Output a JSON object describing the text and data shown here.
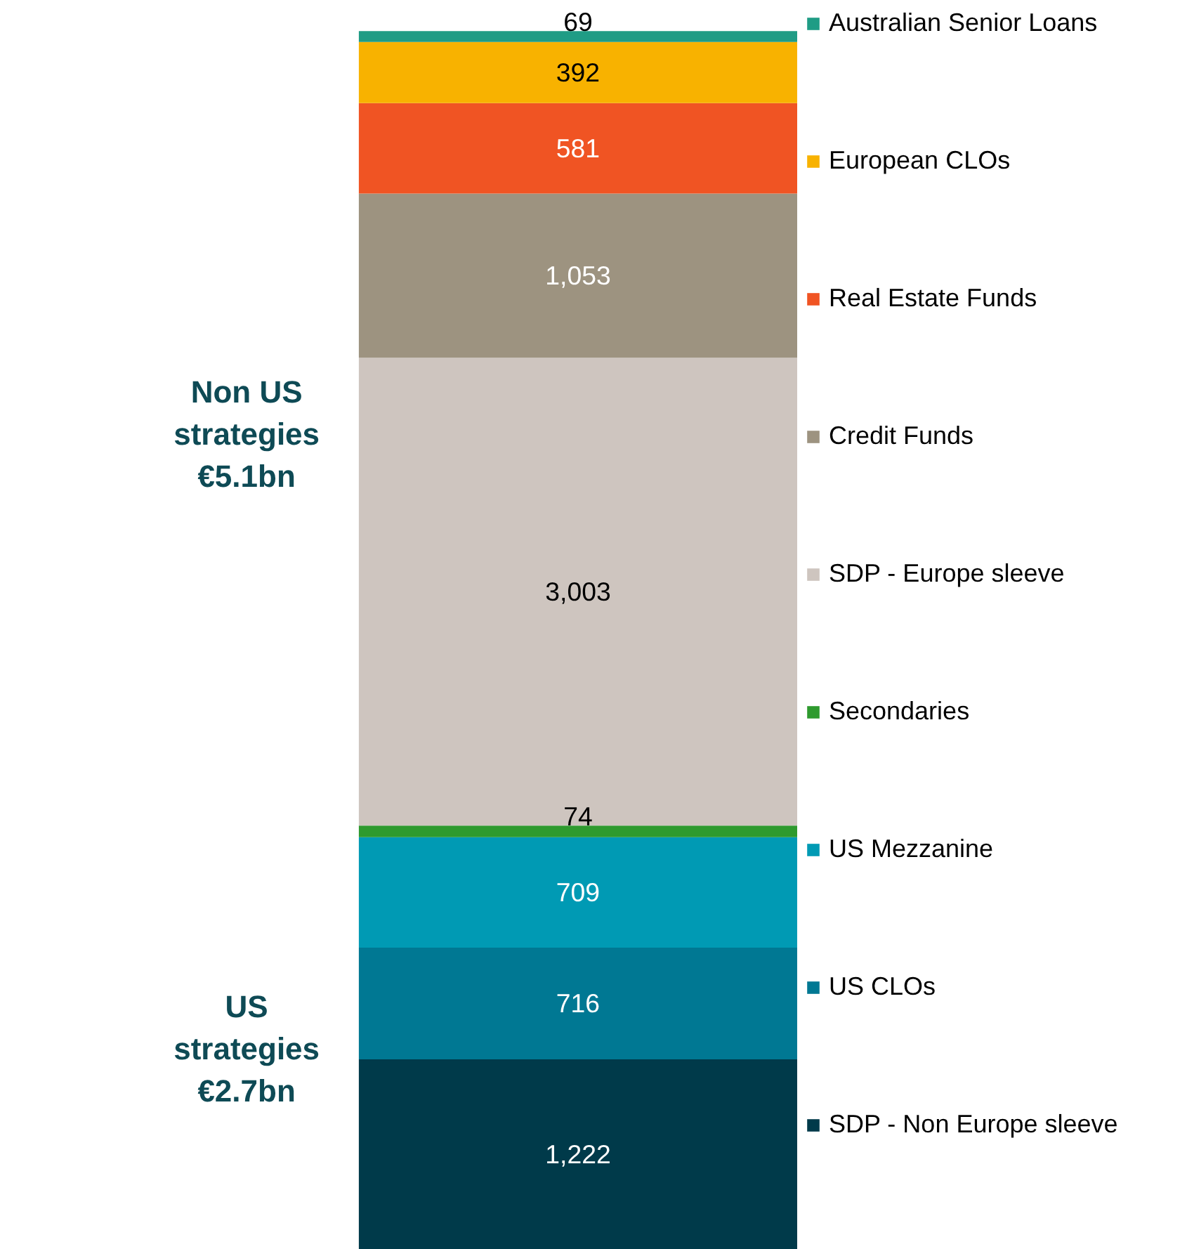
{
  "chart_data": {
    "type": "bar",
    "stacked": true,
    "categories": [
      null
    ],
    "legend": "right",
    "data_labels": true,
    "annotations": [
      "Non US\nstrategies\n€5.1bn",
      "US\nstrategies\n€2.7bn"
    ],
    "series": [
      {
        "name": "SDP - Non Europe sleeve",
        "color": "#003a4a",
        "values": [
          1222
        ],
        "value_labels": [
          "1,222"
        ]
      },
      {
        "name": "US CLOs",
        "color": "#007893",
        "values": [
          716
        ],
        "value_labels": [
          "716"
        ]
      },
      {
        "name": "US Mezzanine",
        "color": "#009ab4",
        "values": [
          709
        ],
        "value_labels": [
          "709"
        ]
      },
      {
        "name": "Secondaries",
        "color": "#2e9a2e",
        "values": [
          74
        ],
        "value_labels": [
          "74"
        ]
      },
      {
        "name": "SDP - Europe sleeve",
        "color": "#cec5bf",
        "values": [
          3003
        ],
        "value_labels": [
          "3,003"
        ]
      },
      {
        "name": "Credit Funds",
        "color": "#9d9380",
        "values": [
          1053
        ],
        "value_labels": [
          "1,053"
        ]
      },
      {
        "name": "Real Estate Funds",
        "color": "#f05423",
        "values": [
          581
        ],
        "value_labels": [
          "581"
        ]
      },
      {
        "name": "European CLOs",
        "color": "#f8b200",
        "values": [
          392
        ],
        "value_labels": [
          "392"
        ]
      },
      {
        "name": "Australian Senior Loans",
        "color": "#1f9c85",
        "values": [
          69
        ],
        "value_labels": [
          "69"
        ]
      }
    ]
  }
}
